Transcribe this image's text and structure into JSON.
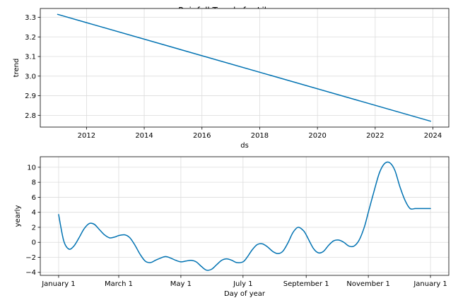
{
  "title": "Rainfall Trends for Libya",
  "chart_data": [
    {
      "type": "line",
      "series_color": "#0072B2",
      "grid": true,
      "xlabel": "ds",
      "ylabel": "trend",
      "xlim": [
        2010.4,
        2024.55
      ],
      "ylim": [
        2.74,
        3.345
      ],
      "x_ticks": [
        2012,
        2014,
        2016,
        2018,
        2020,
        2022,
        2024
      ],
      "x_tick_labels": [
        "2012",
        "2014",
        "2016",
        "2018",
        "2020",
        "2022",
        "2024"
      ],
      "y_ticks": [
        2.8,
        2.9,
        3.0,
        3.1,
        3.2,
        3.3
      ],
      "y_tick_labels": [
        "2.8",
        "2.9",
        "3.0",
        "3.1",
        "3.2",
        "3.3"
      ],
      "series": [
        {
          "x": [
            2011.0,
            2023.92
          ],
          "y": [
            3.315,
            2.77
          ]
        }
      ]
    },
    {
      "type": "line",
      "series_color": "#0072B2",
      "grid": true,
      "xlabel": "Day of year",
      "ylabel": "yearly",
      "xlim": [
        -18,
        383
      ],
      "ylim": [
        -4.4,
        11.4
      ],
      "x_ticks": [
        0,
        59,
        120,
        181,
        243,
        304,
        365
      ],
      "x_tick_labels": [
        "January 1",
        "March 1",
        "May 1",
        "July 1",
        "September 1",
        "November 1",
        "January 1"
      ],
      "y_ticks": [
        -4,
        -2,
        0,
        2,
        4,
        6,
        8,
        10
      ],
      "y_tick_labels": [
        "−4",
        "−2",
        "0",
        "2",
        "4",
        "6",
        "8",
        "10"
      ],
      "series": [
        {
          "x": [
            0,
            5,
            10,
            15,
            20,
            25,
            30,
            35,
            40,
            45,
            50,
            55,
            59,
            65,
            70,
            75,
            80,
            85,
            90,
            95,
            100,
            105,
            110,
            115,
            120,
            125,
            130,
            135,
            140,
            145,
            150,
            155,
            160,
            165,
            170,
            175,
            181,
            185,
            190,
            195,
            200,
            205,
            210,
            215,
            220,
            225,
            230,
            235,
            240,
            243,
            250,
            255,
            260,
            265,
            270,
            275,
            280,
            285,
            290,
            295,
            300,
            304,
            310,
            315,
            320,
            325,
            330,
            335,
            340,
            345,
            350,
            355,
            360,
            365
          ],
          "y": [
            3.7,
            0.2,
            -0.9,
            -0.5,
            0.6,
            1.8,
            2.5,
            2.4,
            1.7,
            1.0,
            0.6,
            0.7,
            0.9,
            1.0,
            0.6,
            -0.4,
            -1.6,
            -2.5,
            -2.7,
            -2.4,
            -2.1,
            -1.9,
            -2.1,
            -2.4,
            -2.6,
            -2.5,
            -2.4,
            -2.6,
            -3.2,
            -3.7,
            -3.6,
            -3.0,
            -2.4,
            -2.2,
            -2.4,
            -2.7,
            -2.6,
            -2.0,
            -1.0,
            -0.3,
            -0.2,
            -0.6,
            -1.2,
            -1.5,
            -1.2,
            -0.1,
            1.3,
            2.0,
            1.6,
            1.0,
            -0.8,
            -1.4,
            -1.2,
            -0.4,
            0.2,
            0.3,
            0.0,
            -0.5,
            -0.5,
            0.3,
            2.0,
            4.0,
            7.0,
            9.3,
            10.5,
            10.6,
            9.6,
            7.4,
            5.6,
            4.5,
            4.5,
            4.5,
            4.5,
            4.5
          ]
        }
      ]
    }
  ]
}
